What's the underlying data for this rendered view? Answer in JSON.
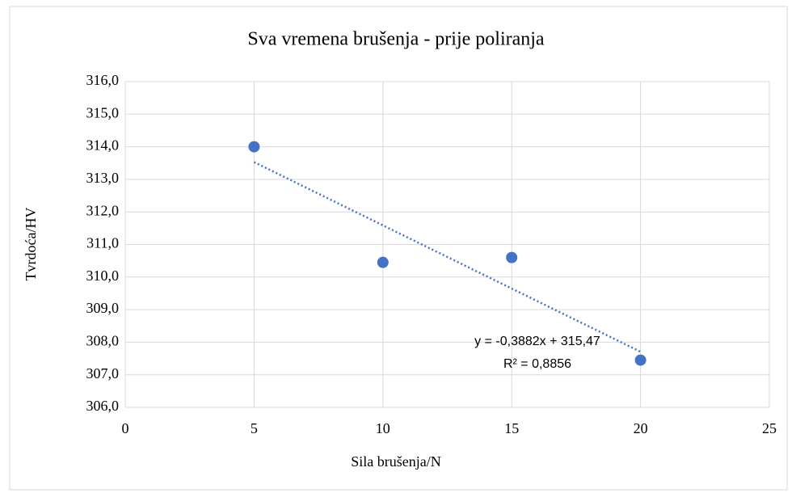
{
  "chart_data": {
    "type": "scatter",
    "title": "Sva vremena brušenja - prije poliranja",
    "x_label": "Sila brušenja/N",
    "y_label": "Tvrdoća/HV",
    "x": [
      5,
      10,
      15,
      20
    ],
    "series": [
      {
        "name": "Tvrdoća/HV",
        "color": "#4472c4",
        "values": [
          314.0,
          310.45,
          310.6,
          307.45
        ]
      }
    ],
    "xlim": [
      0,
      25
    ],
    "xticks": [
      0,
      5,
      10,
      15,
      20,
      25
    ],
    "ylim": [
      306,
      316
    ],
    "yticks": [
      {
        "value": 306,
        "label": "306,0"
      },
      {
        "value": 307,
        "label": "307,0"
      },
      {
        "value": 308,
        "label": "308,0"
      },
      {
        "value": 309,
        "label": "309,0"
      },
      {
        "value": 310,
        "label": "310,0"
      },
      {
        "value": 311,
        "label": "311,0"
      },
      {
        "value": 312,
        "label": "312,0"
      },
      {
        "value": 313,
        "label": "313,0"
      },
      {
        "value": 314,
        "label": "314,0"
      },
      {
        "value": 315,
        "label": "315,0"
      },
      {
        "value": 316,
        "label": "316,0"
      }
    ],
    "grid": true,
    "trendline": {
      "slope": -0.3882,
      "intercept": 315.47,
      "equation": "y = -0,3882x + 315,47",
      "r2_label": "R² = 0,8856"
    }
  }
}
